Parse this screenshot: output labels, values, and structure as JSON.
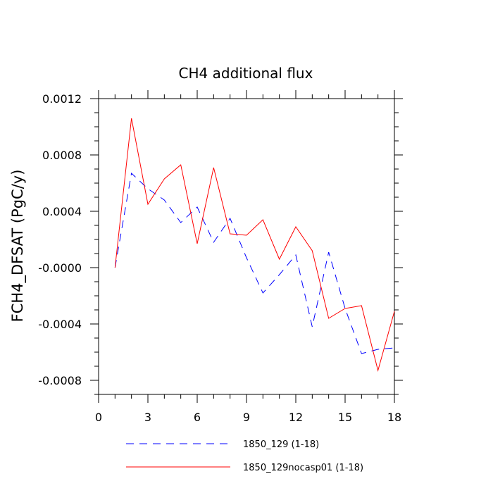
{
  "chart_data": {
    "type": "line",
    "title": "CH4 additional flux",
    "xlabel": "",
    "ylabel": "FCH4_DFSAT  (PgC/y)",
    "xlim": [
      0,
      18
    ],
    "ylim": [
      -0.0009,
      0.0012
    ],
    "x_ticks": [
      0,
      3,
      6,
      9,
      12,
      15,
      18
    ],
    "x_tick_labels": [
      "0",
      "3",
      "6",
      "9",
      "12",
      "15",
      "18"
    ],
    "y_ticks": [
      0.0012,
      0.0008,
      0.0004,
      0.0,
      -0.0004,
      -0.0008
    ],
    "y_tick_labels": [
      "0.0012",
      "0.0008",
      "0.0004",
      "-0.0000",
      "-0.0004",
      "-0.0008"
    ],
    "legend_position": "bottom",
    "grid": false,
    "series": [
      {
        "name": "1850_129 (1-18)",
        "color": "#0000ff",
        "style": "dashed",
        "x": [
          1,
          2,
          3,
          4,
          5,
          6,
          7,
          8,
          9,
          10,
          11,
          12,
          13,
          14,
          15,
          16,
          17,
          18
        ],
        "values": [
          0.0,
          0.00067,
          0.00056,
          0.00048,
          0.00032,
          0.00043,
          0.00018,
          0.00035,
          7e-05,
          -0.00018,
          -5e-05,
          9e-05,
          -0.00042,
          0.00011,
          -0.00029,
          -0.00061,
          -0.00058,
          -0.00057
        ]
      },
      {
        "name": "1850_129nocasp01 (1-18)",
        "color": "#ff0000",
        "style": "solid",
        "x": [
          1,
          2,
          3,
          4,
          5,
          6,
          7,
          8,
          9,
          10,
          11,
          12,
          13,
          14,
          15,
          16,
          17,
          18
        ],
        "values": [
          0.0,
          0.00106,
          0.00045,
          0.00063,
          0.00073,
          0.00017,
          0.00071,
          0.00024,
          0.00023,
          0.00034,
          6e-05,
          0.00029,
          0.00012,
          -0.00036,
          -0.00029,
          -0.00027,
          -0.00073,
          -0.00031
        ]
      }
    ]
  }
}
